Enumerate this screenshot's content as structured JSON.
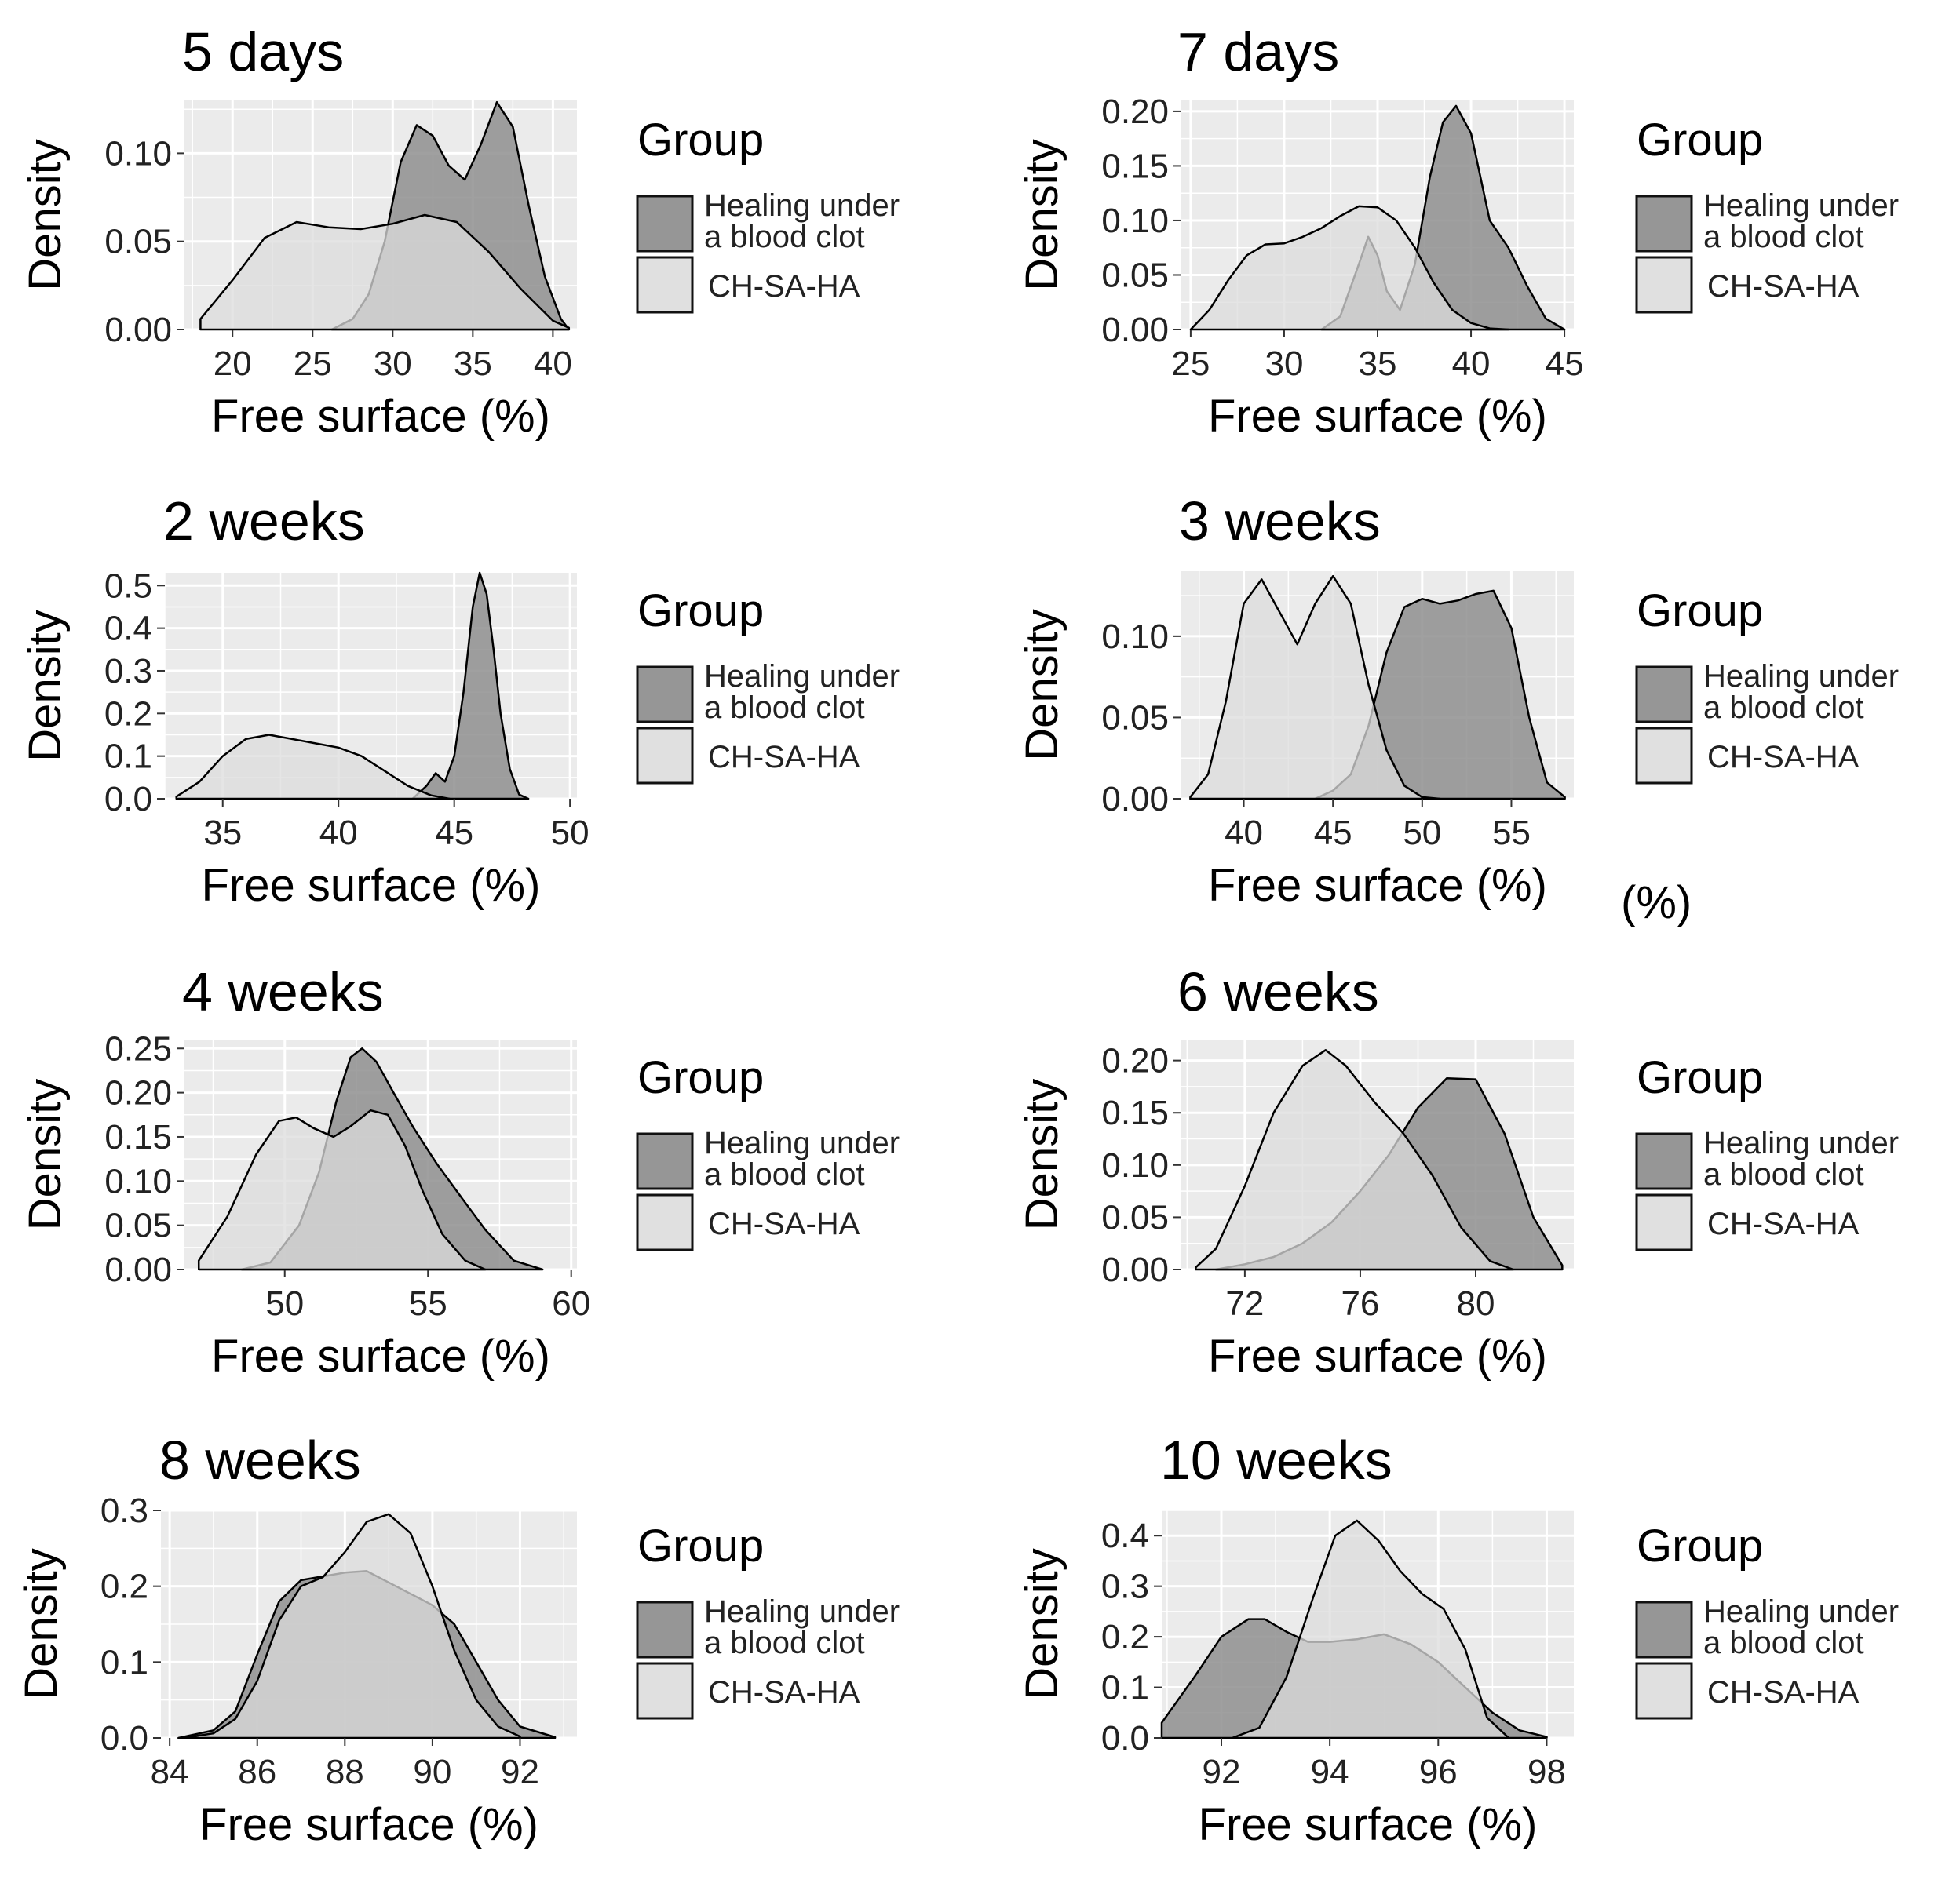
{
  "legend": {
    "title": "Group",
    "items": [
      {
        "label_line1": "Healing under",
        "label_line2": "a blood clot",
        "color": "#969696"
      },
      {
        "label_line1": "CH-SA-HA",
        "label_line2": "",
        "color": "#e0e0e0"
      }
    ]
  },
  "colors": {
    "panel_bg": "#ebebeb",
    "grid": "#ffffff",
    "dark_fill": "#8f8f8f",
    "light_fill": "#dcdcdc",
    "outline": "#000000"
  },
  "stray_label": "(%)",
  "chart_data": [
    {
      "type": "area",
      "title": "5 days",
      "xlabel": "Free surface (%)",
      "ylabel": "Density",
      "xlim": [
        17,
        41.5
      ],
      "ylim": [
        0,
        0.13
      ],
      "xticks": [
        20,
        25,
        30,
        35,
        40
      ],
      "yticks": [
        0.0,
        0.05,
        0.1
      ],
      "ytick_labels": [
        "0.00",
        "0.05",
        "0.10"
      ],
      "grid": true,
      "legend_position": "right",
      "series": [
        {
          "name": "Healing under a blood clot",
          "x": [
            26.2,
            27.5,
            28.5,
            29.5,
            30.5,
            31.5,
            32.5,
            33.5,
            34.5,
            35.5,
            36.5,
            37.5,
            38.5,
            39.5,
            40.5,
            41
          ],
          "y": [
            0.0,
            0.006,
            0.02,
            0.05,
            0.095,
            0.116,
            0.11,
            0.093,
            0.085,
            0.105,
            0.129,
            0.115,
            0.07,
            0.03,
            0.006,
            0.0
          ]
        },
        {
          "name": "CH-SA-HA",
          "x": [
            18,
            20,
            22,
            24,
            26,
            28,
            30,
            32,
            34,
            36,
            38,
            40,
            41
          ],
          "y": [
            0.006,
            0.028,
            0.052,
            0.061,
            0.058,
            0.057,
            0.06,
            0.065,
            0.061,
            0.044,
            0.023,
            0.005,
            0.001
          ]
        }
      ]
    },
    {
      "type": "area",
      "title": "7 days",
      "xlabel": "Free surface (%)",
      "ylabel": "Density",
      "xlim": [
        24.5,
        45.5
      ],
      "ylim": [
        0,
        0.21
      ],
      "xticks": [
        25,
        30,
        35,
        40,
        45
      ],
      "yticks": [
        0.0,
        0.05,
        0.1,
        0.15,
        0.2
      ],
      "ytick_labels": [
        "0.00",
        "0.05",
        "0.10",
        "0.15",
        "0.20"
      ],
      "grid": true,
      "legend_position": "right",
      "series": [
        {
          "name": "Healing under a blood clot",
          "x": [
            32,
            33,
            34,
            34.5,
            35,
            35.5,
            36.2,
            37,
            37.8,
            38.5,
            39.2,
            40,
            40.5,
            41,
            42,
            43,
            44,
            45
          ],
          "y": [
            0.0,
            0.012,
            0.06,
            0.085,
            0.068,
            0.035,
            0.018,
            0.06,
            0.14,
            0.19,
            0.205,
            0.18,
            0.14,
            0.1,
            0.075,
            0.04,
            0.01,
            0.0
          ]
        },
        {
          "name": "CH-SA-HA",
          "x": [
            25,
            26,
            27,
            28,
            29,
            30,
            31,
            32,
            33,
            34,
            35,
            36,
            37,
            38,
            39,
            40,
            41,
            42
          ],
          "y": [
            0.0,
            0.018,
            0.045,
            0.068,
            0.078,
            0.079,
            0.085,
            0.093,
            0.104,
            0.113,
            0.112,
            0.1,
            0.075,
            0.043,
            0.018,
            0.006,
            0.001,
            0.0
          ]
        }
      ]
    },
    {
      "type": "area",
      "title": "2 weeks",
      "xlabel": "Free surface (%)",
      "ylabel": "Density",
      "xlim": [
        32.5,
        50.3
      ],
      "ylim": [
        0,
        0.53
      ],
      "xticks": [
        35,
        40,
        45,
        50
      ],
      "yticks": [
        0.0,
        0.1,
        0.2,
        0.3,
        0.4,
        0.5
      ],
      "ytick_labels": [
        "0.0",
        "0.1",
        "0.2",
        "0.3",
        "0.4",
        "0.5"
      ],
      "grid": true,
      "legend_position": "right",
      "series": [
        {
          "name": "Healing under a blood clot",
          "x": [
            43.2,
            43.8,
            44.2,
            44.6,
            45.0,
            45.4,
            45.8,
            46.1,
            46.4,
            46.7,
            47.0,
            47.4,
            47.8,
            48.2
          ],
          "y": [
            0.0,
            0.03,
            0.06,
            0.04,
            0.1,
            0.25,
            0.45,
            0.53,
            0.48,
            0.35,
            0.2,
            0.07,
            0.01,
            0.0
          ]
        },
        {
          "name": "CH-SA-HA",
          "x": [
            33,
            34,
            35,
            36,
            37,
            38,
            39,
            40,
            41,
            42,
            43,
            44,
            44.8
          ],
          "y": [
            0.005,
            0.04,
            0.1,
            0.14,
            0.15,
            0.14,
            0.13,
            0.12,
            0.1,
            0.065,
            0.03,
            0.008,
            0.0
          ]
        }
      ]
    },
    {
      "type": "area",
      "title": "3 weeks",
      "xlabel": "Free surface (%)",
      "ylabel": "Density",
      "xlim": [
        36.5,
        58.5
      ],
      "ylim": [
        0,
        0.14
      ],
      "xticks": [
        40,
        45,
        50,
        55
      ],
      "yticks": [
        0.0,
        0.05,
        0.1
      ],
      "ytick_labels": [
        "0.00",
        "0.05",
        "0.10"
      ],
      "grid": true,
      "legend_position": "right",
      "series": [
        {
          "name": "Healing under a blood clot",
          "x": [
            44,
            45,
            46,
            47,
            48,
            49,
            50,
            51,
            52,
            53,
            54,
            55,
            56,
            57,
            58
          ],
          "y": [
            0.0,
            0.005,
            0.015,
            0.045,
            0.09,
            0.118,
            0.123,
            0.12,
            0.122,
            0.126,
            0.128,
            0.105,
            0.05,
            0.01,
            0.001
          ]
        },
        {
          "name": "CH-SA-HA",
          "x": [
            37,
            38,
            39,
            40,
            41,
            42,
            43,
            44,
            45,
            46,
            47,
            48,
            49,
            50,
            51
          ],
          "y": [
            0.001,
            0.015,
            0.06,
            0.12,
            0.135,
            0.115,
            0.095,
            0.12,
            0.137,
            0.12,
            0.07,
            0.03,
            0.008,
            0.001,
            0.0
          ]
        }
      ]
    },
    {
      "type": "area",
      "title": "4 weeks",
      "xlabel": "Free surface (%)",
      "ylabel": "Density",
      "xlim": [
        46.5,
        60.2
      ],
      "ylim": [
        0,
        0.26
      ],
      "xticks": [
        50,
        55,
        60
      ],
      "yticks": [
        0.0,
        0.05,
        0.1,
        0.15,
        0.2,
        0.25
      ],
      "ytick_labels": [
        "0.00",
        "0.05",
        "0.10",
        "0.15",
        "0.20",
        "0.25"
      ],
      "grid": true,
      "legend_position": "right",
      "series": [
        {
          "name": "Healing under a blood clot",
          "x": [
            48.5,
            49.5,
            50.5,
            51.2,
            51.8,
            52.3,
            52.7,
            53.2,
            53.8,
            54.5,
            55.3,
            56.2,
            57,
            58,
            59
          ],
          "y": [
            0.0,
            0.008,
            0.05,
            0.11,
            0.19,
            0.24,
            0.25,
            0.235,
            0.2,
            0.16,
            0.12,
            0.08,
            0.045,
            0.01,
            0.0
          ]
        },
        {
          "name": "CH-SA-HA",
          "x": [
            47,
            48,
            49,
            49.8,
            50.4,
            51,
            51.7,
            52.3,
            53,
            53.6,
            54.2,
            54.8,
            55.5,
            56.3,
            57
          ],
          "y": [
            0.01,
            0.06,
            0.13,
            0.168,
            0.172,
            0.16,
            0.15,
            0.162,
            0.18,
            0.175,
            0.14,
            0.09,
            0.04,
            0.01,
            0.0
          ]
        }
      ]
    },
    {
      "type": "area",
      "title": "6 weeks",
      "xlabel": "Free surface (%)",
      "ylabel": "Density",
      "xlim": [
        69.8,
        83.4
      ],
      "ylim": [
        0,
        0.22
      ],
      "xticks": [
        72,
        76,
        80
      ],
      "yticks": [
        0.0,
        0.05,
        0.1,
        0.15,
        0.2
      ],
      "ytick_labels": [
        "0.00",
        "0.05",
        "0.10",
        "0.15",
        "0.20"
      ],
      "grid": true,
      "legend_position": "right",
      "series": [
        {
          "name": "Healing under a blood clot",
          "x": [
            71,
            72,
            73,
            74,
            75,
            76,
            77,
            78,
            79,
            80,
            81,
            82,
            83
          ],
          "y": [
            0.0,
            0.005,
            0.012,
            0.025,
            0.045,
            0.075,
            0.11,
            0.155,
            0.183,
            0.182,
            0.13,
            0.05,
            0.004
          ]
        },
        {
          "name": "CH-SA-HA",
          "x": [
            70.3,
            71,
            72,
            73,
            74,
            74.8,
            75.5,
            76.5,
            77.5,
            78.5,
            79.5,
            80.5,
            81.3
          ],
          "y": [
            0.002,
            0.02,
            0.08,
            0.15,
            0.195,
            0.21,
            0.195,
            0.16,
            0.13,
            0.09,
            0.04,
            0.008,
            0.0
          ]
        }
      ]
    },
    {
      "type": "area",
      "title": "8 weeks",
      "xlabel": "Free surface (%)",
      "ylabel": "Density",
      "xlim": [
        83.8,
        93.3
      ],
      "ylim": [
        0,
        0.3
      ],
      "xticks": [
        84,
        86,
        88,
        90,
        92
      ],
      "yticks": [
        0.0,
        0.1,
        0.2,
        0.3
      ],
      "ytick_labels": [
        "0.0",
        "0.1",
        "0.2",
        "0.3"
      ],
      "grid": true,
      "legend_position": "right",
      "series": [
        {
          "name": "Healing under a blood clot",
          "x": [
            84.2,
            85,
            85.5,
            86,
            86.5,
            87,
            87.5,
            88,
            88.5,
            89,
            89.5,
            90,
            90.5,
            91,
            91.5,
            92,
            92.8
          ],
          "y": [
            0.0,
            0.01,
            0.035,
            0.11,
            0.18,
            0.208,
            0.213,
            0.218,
            0.22,
            0.205,
            0.19,
            0.175,
            0.15,
            0.1,
            0.05,
            0.015,
            0.001
          ]
        },
        {
          "name": "CH-SA-HA",
          "x": [
            84.3,
            85,
            85.5,
            86,
            86.5,
            87,
            87.5,
            88,
            88.5,
            89,
            89.5,
            90,
            90.5,
            91,
            91.5,
            92
          ],
          "y": [
            0.0,
            0.006,
            0.025,
            0.075,
            0.155,
            0.2,
            0.212,
            0.245,
            0.285,
            0.295,
            0.27,
            0.2,
            0.115,
            0.05,
            0.015,
            0.002
          ]
        }
      ]
    },
    {
      "type": "area",
      "title": "10 weeks",
      "xlabel": "Free surface (%)",
      "ylabel": "Density",
      "xlim": [
        90.9,
        98.5
      ],
      "ylim": [
        0,
        0.45
      ],
      "xticks": [
        92,
        94,
        96,
        98
      ],
      "yticks": [
        0.0,
        0.1,
        0.2,
        0.3,
        0.4
      ],
      "ytick_labels": [
        "0.0",
        "0.1",
        "0.2",
        "0.3",
        "0.4"
      ],
      "grid": true,
      "legend_position": "right",
      "series": [
        {
          "name": "Healing under a blood clot",
          "x": [
            90.9,
            91.5,
            92,
            92.5,
            92.8,
            93.2,
            93.6,
            94,
            94.5,
            95,
            95.5,
            96,
            96.5,
            97,
            97.5,
            98
          ],
          "y": [
            0.03,
            0.12,
            0.2,
            0.235,
            0.235,
            0.21,
            0.19,
            0.19,
            0.195,
            0.205,
            0.185,
            0.15,
            0.1,
            0.05,
            0.015,
            0.002
          ]
        },
        {
          "name": "CH-SA-HA",
          "x": [
            92.2,
            92.7,
            93.2,
            93.7,
            94.1,
            94.5,
            94.9,
            95.3,
            95.7,
            96.1,
            96.5,
            96.9,
            97.3
          ],
          "y": [
            0.0,
            0.02,
            0.12,
            0.28,
            0.4,
            0.43,
            0.39,
            0.33,
            0.285,
            0.255,
            0.175,
            0.04,
            0.0
          ]
        }
      ]
    }
  ]
}
